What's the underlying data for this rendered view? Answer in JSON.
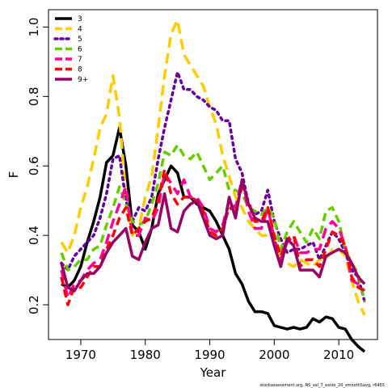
{
  "chart_data": {
    "type": "line",
    "xlabel": "Year",
    "ylabel": "F",
    "xlim": [
      1965,
      2016
    ],
    "ylim": [
      0.1,
      1.05
    ],
    "xticks": [
      1970,
      1980,
      1990,
      2000,
      2010
    ],
    "yticks": [
      0.2,
      0.4,
      0.6,
      0.8,
      1.0
    ],
    "ytick_labels": [
      "0.2",
      "0.4",
      "0.6",
      "0.8",
      "1.0"
    ],
    "grid": false,
    "legend_position": "top-left",
    "caption": "stockassessment.org, NS_sel_7_exidx_20_smoothSavg, r6455",
    "x": [
      1967,
      1968,
      1969,
      1970,
      1971,
      1972,
      1973,
      1974,
      1975,
      1976,
      1977,
      1978,
      1979,
      1980,
      1981,
      1982,
      1983,
      1984,
      1985,
      1986,
      1987,
      1988,
      1989,
      1990,
      1991,
      1992,
      1993,
      1994,
      1995,
      1996,
      1997,
      1998,
      1999,
      2000,
      2001,
      2002,
      2003,
      2004,
      2005,
      2006,
      2007,
      2008,
      2009,
      2010,
      2011,
      2012,
      2013,
      2014
    ],
    "series": [
      {
        "name": "3",
        "color": "#000000",
        "dash": "solid",
        "values": [
          0.26,
          0.25,
          0.27,
          0.31,
          0.38,
          0.44,
          0.51,
          0.61,
          0.63,
          0.71,
          0.6,
          0.43,
          0.41,
          0.36,
          0.42,
          0.52,
          0.56,
          0.6,
          0.58,
          0.51,
          0.51,
          0.49,
          0.48,
          0.47,
          0.44,
          0.4,
          0.36,
          0.29,
          0.26,
          0.21,
          0.18,
          0.18,
          0.175,
          0.14,
          0.135,
          0.13,
          0.135,
          0.13,
          0.135,
          0.16,
          0.15,
          0.165,
          0.16,
          0.135,
          0.13,
          0.1,
          0.08,
          0.065
        ]
      },
      {
        "name": "4",
        "color": "#FFCC00",
        "dash": "long",
        "values": [
          0.38,
          0.35,
          0.4,
          0.48,
          0.54,
          0.62,
          0.71,
          0.75,
          0.86,
          0.74,
          0.51,
          0.4,
          0.42,
          0.51,
          0.57,
          0.71,
          0.86,
          0.98,
          1.02,
          0.92,
          0.89,
          0.86,
          0.83,
          0.77,
          0.72,
          0.63,
          0.57,
          0.51,
          0.48,
          0.44,
          0.42,
          0.4,
          0.4,
          0.39,
          0.33,
          0.32,
          0.31,
          0.33,
          0.32,
          0.31,
          0.33,
          0.33,
          0.36,
          0.36,
          0.34,
          0.27,
          0.21,
          0.17
        ]
      },
      {
        "name": "5",
        "color": "#660099",
        "dash": "dot",
        "values": [
          0.32,
          0.3,
          0.34,
          0.36,
          0.38,
          0.4,
          0.45,
          0.52,
          0.62,
          0.63,
          0.5,
          0.44,
          0.48,
          0.47,
          0.51,
          0.62,
          0.71,
          0.79,
          0.87,
          0.82,
          0.82,
          0.8,
          0.79,
          0.77,
          0.76,
          0.73,
          0.73,
          0.62,
          0.58,
          0.49,
          0.46,
          0.47,
          0.53,
          0.44,
          0.39,
          0.35,
          0.36,
          0.36,
          0.37,
          0.38,
          0.33,
          0.37,
          0.41,
          0.39,
          0.35,
          0.3,
          0.28,
          0.21
        ]
      },
      {
        "name": "6",
        "color": "#66CC00",
        "dash": "medium",
        "values": [
          0.35,
          0.3,
          0.31,
          0.33,
          0.33,
          0.36,
          0.37,
          0.43,
          0.48,
          0.54,
          0.49,
          0.44,
          0.43,
          0.44,
          0.49,
          0.55,
          0.64,
          0.63,
          0.66,
          0.63,
          0.62,
          0.64,
          0.6,
          0.56,
          0.58,
          0.6,
          0.53,
          0.53,
          0.52,
          0.48,
          0.47,
          0.46,
          0.48,
          0.45,
          0.36,
          0.41,
          0.44,
          0.41,
          0.38,
          0.42,
          0.39,
          0.47,
          0.48,
          0.44,
          0.36,
          0.32,
          0.29,
          0.21
        ]
      },
      {
        "name": "7",
        "color": "#FF0099",
        "dash": "long",
        "values": [
          0.3,
          0.22,
          0.26,
          0.27,
          0.3,
          0.32,
          0.33,
          0.38,
          0.44,
          0.49,
          0.54,
          0.4,
          0.4,
          0.45,
          0.44,
          0.48,
          0.58,
          0.55,
          0.52,
          0.56,
          0.51,
          0.51,
          0.48,
          0.42,
          0.41,
          0.43,
          0.5,
          0.48,
          0.56,
          0.47,
          0.42,
          0.42,
          0.48,
          0.39,
          0.33,
          0.38,
          0.4,
          0.35,
          0.35,
          0.36,
          0.36,
          0.42,
          0.44,
          0.42,
          0.37,
          0.27,
          0.26,
          0.24
        ]
      },
      {
        "name": "8",
        "color": "#FF0000",
        "dash": "medium",
        "values": [
          0.28,
          0.2,
          0.25,
          0.25,
          0.28,
          0.31,
          0.31,
          0.36,
          0.4,
          0.45,
          0.48,
          0.4,
          0.42,
          0.44,
          0.45,
          0.5,
          0.59,
          0.52,
          0.49,
          0.51,
          0.51,
          0.5,
          0.47,
          0.41,
          0.4,
          0.42,
          0.48,
          0.47,
          0.54,
          0.5,
          0.44,
          0.44,
          0.48,
          0.4,
          0.34,
          0.39,
          0.4,
          0.31,
          0.33,
          0.33,
          0.31,
          0.36,
          0.41,
          0.4,
          0.37,
          0.28,
          0.25,
          0.24
        ]
      },
      {
        "name": "9+",
        "color": "#990066",
        "dash": "solid",
        "values": [
          0.32,
          0.25,
          0.24,
          0.27,
          0.29,
          0.29,
          0.31,
          0.35,
          0.38,
          0.4,
          0.42,
          0.34,
          0.33,
          0.38,
          0.42,
          0.43,
          0.52,
          0.42,
          0.41,
          0.47,
          0.49,
          0.5,
          0.45,
          0.4,
          0.39,
          0.4,
          0.51,
          0.45,
          0.56,
          0.49,
          0.45,
          0.44,
          0.44,
          0.37,
          0.31,
          0.39,
          0.37,
          0.3,
          0.3,
          0.3,
          0.28,
          0.34,
          0.35,
          0.36,
          0.35,
          0.32,
          0.28,
          0.26
        ]
      }
    ]
  }
}
